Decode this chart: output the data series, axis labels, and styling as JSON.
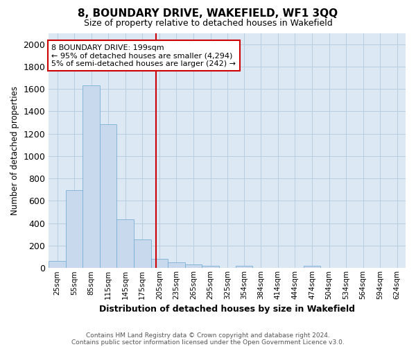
{
  "title": "8, BOUNDARY DRIVE, WAKEFIELD, WF1 3QQ",
  "subtitle": "Size of property relative to detached houses in Wakefield",
  "xlabel": "Distribution of detached houses by size in Wakefield",
  "ylabel": "Number of detached properties",
  "bar_color": "#c8d9ed",
  "bar_edge_color": "#7aafd4",
  "grid_color": "#b8cfe0",
  "background_color": "#dce9f5",
  "annotation_box_color": "#cc0000",
  "vline_color": "#cc0000",
  "vline_x_index": 6,
  "categories": [
    "25sqm",
    "55sqm",
    "85sqm",
    "115sqm",
    "145sqm",
    "175sqm",
    "205sqm",
    "235sqm",
    "265sqm",
    "295sqm",
    "325sqm",
    "354sqm",
    "384sqm",
    "414sqm",
    "444sqm",
    "474sqm",
    "504sqm",
    "534sqm",
    "564sqm",
    "594sqm",
    "624sqm"
  ],
  "bin_left_edges": [
    10,
    40,
    70,
    100,
    130,
    160,
    190,
    220,
    250,
    280,
    310,
    339,
    369,
    399,
    429,
    459,
    489,
    519,
    549,
    579,
    609
  ],
  "bin_width": 30,
  "values": [
    65,
    695,
    1635,
    1285,
    435,
    255,
    85,
    50,
    30,
    20,
    0,
    20,
    0,
    0,
    0,
    20,
    0,
    0,
    0,
    0,
    0
  ],
  "ylim": [
    0,
    2100
  ],
  "yticks": [
    0,
    200,
    400,
    600,
    800,
    1000,
    1200,
    1400,
    1600,
    1800,
    2000
  ],
  "annotation_text": "8 BOUNDARY DRIVE: 199sqm\n← 95% of detached houses are smaller (4,294)\n5% of semi-detached houses are larger (242) →",
  "footnote1": "Contains HM Land Registry data © Crown copyright and database right 2024.",
  "footnote2": "Contains public sector information licensed under the Open Government Licence v3.0."
}
